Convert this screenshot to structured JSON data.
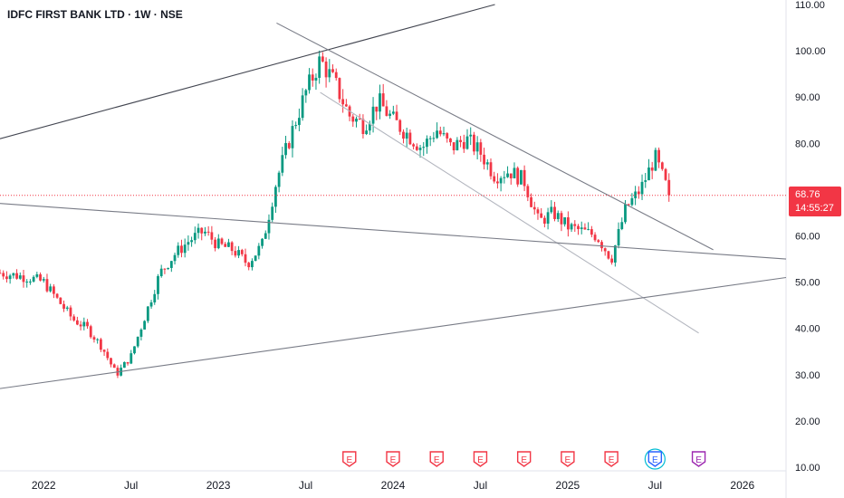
{
  "symbol_title": "IDFC FIRST BANK LTD · 1W · NSE",
  "price_badge": {
    "price": "68.76",
    "countdown": "14:55:27",
    "color": "#f23645"
  },
  "colors": {
    "up": "#089981",
    "down": "#f23645",
    "trendline": "#434651",
    "grid": "#f0f3fa",
    "earnings_red": "#f23645",
    "earnings_teal": "#2962ff",
    "earnings_purple": "#9c27b0"
  },
  "earnings_markers": [
    {
      "date": "2023-10",
      "label": "E",
      "style": "past"
    },
    {
      "date": "2024-01",
      "label": "E",
      "style": "past"
    },
    {
      "date": "2024-04",
      "label": "E",
      "style": "past"
    },
    {
      "date": "2024-07",
      "label": "E",
      "style": "past"
    },
    {
      "date": "2024-10",
      "label": "E",
      "style": "past"
    },
    {
      "date": "2025-01",
      "label": "E",
      "style": "past"
    },
    {
      "date": "2025-04",
      "label": "E",
      "style": "past"
    },
    {
      "date": "2025-07",
      "label": "E",
      "style": "current"
    },
    {
      "date": "2025-10",
      "label": "E",
      "style": "upcoming"
    }
  ],
  "chart_data": {
    "type": "candlestick",
    "title": "IDFC FIRST BANK LTD · 1W · NSE",
    "x_ticks": [
      "2022",
      "Jul",
      "2023",
      "Jul",
      "2024",
      "Jul",
      "2025",
      "Jul",
      "2026"
    ],
    "x_tick_dates": [
      "2022-01",
      "2022-07",
      "2023-01",
      "2023-07",
      "2024-01",
      "2024-07",
      "2025-01",
      "2025-07",
      "2026-01"
    ],
    "x_range": [
      "2021-10",
      "2026-04"
    ],
    "y_ticks": [
      "110.00",
      "100.00",
      "90.00",
      "80.00",
      "70.00",
      "60.00",
      "50.00",
      "40.00",
      "30.00",
      "20.00",
      "10.00"
    ],
    "ylim": [
      10,
      110
    ],
    "last_price": 68.76,
    "price_path": [
      [
        "2021-10",
        52
      ],
      [
        "2021-12",
        51
      ],
      [
        "2022-01",
        50
      ],
      [
        "2022-02",
        46
      ],
      [
        "2022-03",
        42
      ],
      [
        "2022-04",
        40
      ],
      [
        "2022-05",
        36
      ],
      [
        "2022-06",
        30
      ],
      [
        "2022-07",
        34
      ],
      [
        "2022-08",
        43
      ],
      [
        "2022-09",
        52
      ],
      [
        "2022-10",
        56
      ],
      [
        "2022-11",
        59
      ],
      [
        "2022-12",
        61
      ],
      [
        "2023-01",
        58
      ],
      [
        "2023-02",
        57
      ],
      [
        "2023-03",
        54
      ],
      [
        "2023-04",
        58
      ],
      [
        "2023-05",
        72
      ],
      [
        "2023-06",
        82
      ],
      [
        "2023-07",
        91
      ],
      [
        "2023-08",
        98
      ],
      [
        "2023-09",
        93
      ],
      [
        "2023-10",
        86
      ],
      [
        "2023-11",
        84
      ],
      [
        "2023-12",
        89
      ],
      [
        "2024-01",
        85
      ],
      [
        "2024-02",
        82
      ],
      [
        "2024-03",
        79
      ],
      [
        "2024-04",
        83
      ],
      [
        "2024-05",
        79
      ],
      [
        "2024-06",
        81
      ],
      [
        "2024-07",
        78
      ],
      [
        "2024-08",
        73
      ],
      [
        "2024-09",
        74
      ],
      [
        "2024-10",
        72
      ],
      [
        "2024-11",
        63
      ],
      [
        "2024-12",
        65
      ],
      [
        "2025-01",
        62
      ],
      [
        "2025-02",
        61
      ],
      [
        "2025-03",
        60
      ],
      [
        "2025-04",
        55
      ],
      [
        "2025-05",
        66
      ],
      [
        "2025-06",
        70
      ],
      [
        "2025-07",
        77
      ],
      [
        "2025-08",
        68.76
      ]
    ],
    "trendlines": [
      {
        "name": "upper-channel",
        "from": [
          "2021-10",
          81
        ],
        "to": [
          "2024-08",
          110
        ],
        "color": "#434651"
      },
      {
        "name": "descending-resistance",
        "from": [
          "2023-05",
          106
        ],
        "to": [
          "2025-11",
          57
        ],
        "color": "#787b86"
      },
      {
        "name": "descending-support",
        "from": [
          "2023-08",
          91
        ],
        "to": [
          "2025-10",
          39
        ],
        "color": "#b2b5be"
      },
      {
        "name": "long-resistance",
        "from": [
          "2021-10",
          67
        ],
        "to": [
          "2026-04",
          55
        ],
        "color": "#787b86"
      },
      {
        "name": "long-support",
        "from": [
          "2021-10",
          27
        ],
        "to": [
          "2026-04",
          51
        ],
        "color": "#787b86"
      }
    ],
    "grid": false,
    "legend": "none"
  }
}
